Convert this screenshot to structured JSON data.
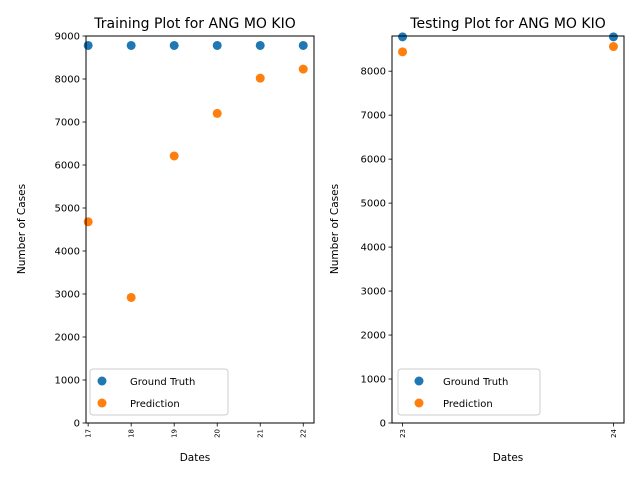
{
  "colors": {
    "ground_truth": "#1f77b4",
    "prediction": "#ff7f0e",
    "axis": "#000000",
    "legend_border": "#cccccc"
  },
  "chart_data": [
    {
      "type": "scatter",
      "title": "Training Plot for ANG MO KIO",
      "xlabel": "Dates",
      "ylabel": "Number of Cases",
      "x": [
        "17",
        "18",
        "19",
        "20",
        "21",
        "22"
      ],
      "xlim": [
        16.95,
        22.25
      ],
      "ylim": [
        0,
        9000
      ],
      "yticks": [
        0,
        1000,
        2000,
        3000,
        4000,
        5000,
        6000,
        7000,
        8000,
        9000
      ],
      "legend_position": "lower left",
      "series": [
        {
          "name": "Ground Truth",
          "color": "#1f77b4",
          "values": [
            8780,
            8780,
            8780,
            8780,
            8780,
            8780
          ]
        },
        {
          "name": "Prediction",
          "color": "#ff7f0e",
          "values": [
            4680,
            2920,
            6210,
            7200,
            8020,
            8230
          ]
        }
      ]
    },
    {
      "type": "scatter",
      "title": "Testing Plot for ANG MO KIO",
      "xlabel": "Dates",
      "ylabel": "Number of Cases",
      "x": [
        "23",
        "24"
      ],
      "xlim": [
        22.95,
        24.05
      ],
      "ylim": [
        0,
        8800
      ],
      "yticks": [
        0,
        1000,
        2000,
        3000,
        4000,
        5000,
        6000,
        7000,
        8000
      ],
      "legend_position": "lower left",
      "series": [
        {
          "name": "Ground Truth",
          "color": "#1f77b4",
          "values": [
            8780,
            8780
          ]
        },
        {
          "name": "Prediction",
          "color": "#ff7f0e",
          "values": [
            8440,
            8560
          ]
        }
      ]
    }
  ]
}
